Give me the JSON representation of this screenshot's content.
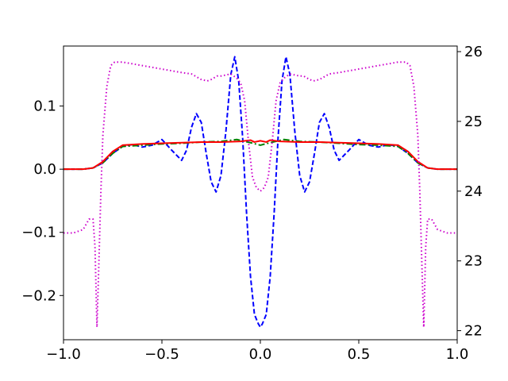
{
  "chart_data": {
    "type": "line",
    "title": "",
    "xlabel": "",
    "ylabel": "",
    "y2label": "",
    "grid": false,
    "legend": "none",
    "xlim": [
      -1.0,
      1.0
    ],
    "ylim_left": [
      -0.27,
      0.195
    ],
    "ylim_right": [
      21.87,
      26.08
    ],
    "x_ticks": [
      -1.0,
      -0.5,
      0.0,
      0.5,
      1.0
    ],
    "x_tick_labels": [
      "−1.0",
      "−0.5",
      "0.0",
      "0.5",
      "1.0"
    ],
    "y_left_ticks": [
      -0.2,
      -0.1,
      0.0,
      0.1
    ],
    "y_left_tick_labels": [
      "−0.2",
      "−0.1",
      "0.0",
      "0.1"
    ],
    "y_right_ticks": [
      22,
      23,
      24,
      25,
      26
    ],
    "y_right_tick_labels": [
      "22",
      "23",
      "24",
      "25",
      "26"
    ],
    "series": [
      {
        "color": "#0000ff",
        "style": "dashed",
        "axis": "left",
        "x": [
          -1.0,
          -0.9,
          -0.85,
          -0.8,
          -0.75,
          -0.7,
          -0.65,
          -0.6,
          -0.55,
          -0.5,
          -0.45,
          -0.4,
          -0.375,
          -0.35,
          -0.325,
          -0.3,
          -0.275,
          -0.25,
          -0.225,
          -0.2,
          -0.175,
          -0.15,
          -0.13,
          -0.11,
          -0.09,
          -0.07,
          -0.05,
          -0.03,
          -0.01,
          0.0,
          0.01,
          0.03,
          0.05,
          0.07,
          0.09,
          0.11,
          0.13,
          0.15,
          0.175,
          0.2,
          0.225,
          0.25,
          0.275,
          0.3,
          0.325,
          0.35,
          0.375,
          0.4,
          0.45,
          0.5,
          0.55,
          0.6,
          0.65,
          0.7,
          0.75,
          0.8,
          0.85,
          0.9,
          1.0
        ],
        "y": [
          0.0,
          0.0,
          0.002,
          0.01,
          0.025,
          0.036,
          0.039,
          0.035,
          0.038,
          0.047,
          0.03,
          0.014,
          0.03,
          0.066,
          0.088,
          0.074,
          0.025,
          -0.02,
          -0.036,
          -0.01,
          0.06,
          0.15,
          0.178,
          0.14,
          0.05,
          -0.07,
          -0.17,
          -0.23,
          -0.245,
          -0.25,
          -0.245,
          -0.23,
          -0.17,
          -0.07,
          0.05,
          0.14,
          0.178,
          0.15,
          0.06,
          -0.01,
          -0.036,
          -0.02,
          0.025,
          0.074,
          0.088,
          0.066,
          0.03,
          0.014,
          0.03,
          0.047,
          0.038,
          0.035,
          0.039,
          0.036,
          0.025,
          0.01,
          0.002,
          0.0,
          0.0
        ]
      },
      {
        "color": "#008000",
        "style": "dashdot",
        "axis": "left",
        "x": [
          -1.0,
          -0.9,
          -0.85,
          -0.8,
          -0.75,
          -0.7,
          -0.6,
          -0.5,
          -0.4,
          -0.3,
          -0.2,
          -0.12,
          -0.05,
          0.0,
          0.05,
          0.12,
          0.2,
          0.3,
          0.4,
          0.5,
          0.6,
          0.7,
          0.75,
          0.8,
          0.85,
          0.9,
          1.0
        ],
        "y": [
          0.0,
          0.0,
          0.002,
          0.01,
          0.025,
          0.036,
          0.038,
          0.04,
          0.041,
          0.043,
          0.044,
          0.047,
          0.042,
          0.038,
          0.042,
          0.047,
          0.044,
          0.043,
          0.041,
          0.039,
          0.038,
          0.036,
          0.025,
          0.01,
          0.002,
          0.0,
          0.0
        ]
      },
      {
        "color": "#ff0000",
        "style": "solid",
        "axis": "left",
        "x": [
          -1.0,
          -0.9,
          -0.85,
          -0.8,
          -0.75,
          -0.7,
          -0.6,
          -0.5,
          -0.4,
          -0.3,
          -0.2,
          -0.1,
          -0.05,
          -0.03,
          0.0,
          0.03,
          0.05,
          0.1,
          0.2,
          0.3,
          0.4,
          0.5,
          0.6,
          0.7,
          0.75,
          0.8,
          0.85,
          0.9,
          1.0
        ],
        "y": [
          0.0,
          0.0,
          0.002,
          0.012,
          0.028,
          0.038,
          0.04,
          0.041,
          0.042,
          0.043,
          0.043,
          0.044,
          0.046,
          0.043,
          0.045,
          0.043,
          0.046,
          0.044,
          0.043,
          0.043,
          0.042,
          0.041,
          0.04,
          0.038,
          0.028,
          0.012,
          0.002,
          0.0,
          0.0
        ]
      },
      {
        "color": "#cc00cc",
        "style": "dotted",
        "axis": "right",
        "x": [
          -1.0,
          -0.95,
          -0.9,
          -0.87,
          -0.85,
          -0.84,
          -0.83,
          -0.82,
          -0.81,
          -0.8,
          -0.78,
          -0.76,
          -0.74,
          -0.72,
          -0.7,
          -0.6,
          -0.5,
          -0.4,
          -0.35,
          -0.3,
          -0.27,
          -0.25,
          -0.22,
          -0.2,
          -0.15,
          -0.12,
          -0.1,
          -0.08,
          -0.06,
          -0.04,
          -0.02,
          0.0,
          0.02,
          0.04,
          0.06,
          0.08,
          0.1,
          0.12,
          0.15,
          0.2,
          0.22,
          0.25,
          0.27,
          0.3,
          0.35,
          0.4,
          0.5,
          0.6,
          0.7,
          0.72,
          0.74,
          0.76,
          0.78,
          0.8,
          0.81,
          0.82,
          0.83,
          0.84,
          0.85,
          0.87,
          0.9,
          0.95,
          1.0
        ],
        "y": [
          23.4,
          23.4,
          23.45,
          23.6,
          23.6,
          23.2,
          22.05,
          23.0,
          24.0,
          24.8,
          25.5,
          25.8,
          25.85,
          25.85,
          25.85,
          25.8,
          25.75,
          25.7,
          25.68,
          25.6,
          25.58,
          25.6,
          25.65,
          25.65,
          25.68,
          25.62,
          25.55,
          25.3,
          24.7,
          24.2,
          24.05,
          24.0,
          24.05,
          24.2,
          24.7,
          25.3,
          25.55,
          25.62,
          25.68,
          25.65,
          25.65,
          25.6,
          25.58,
          25.6,
          25.68,
          25.7,
          25.75,
          25.8,
          25.85,
          25.85,
          25.85,
          25.8,
          25.5,
          24.8,
          24.0,
          23.0,
          22.05,
          23.2,
          23.6,
          23.6,
          23.45,
          23.4,
          23.4
        ]
      }
    ]
  }
}
